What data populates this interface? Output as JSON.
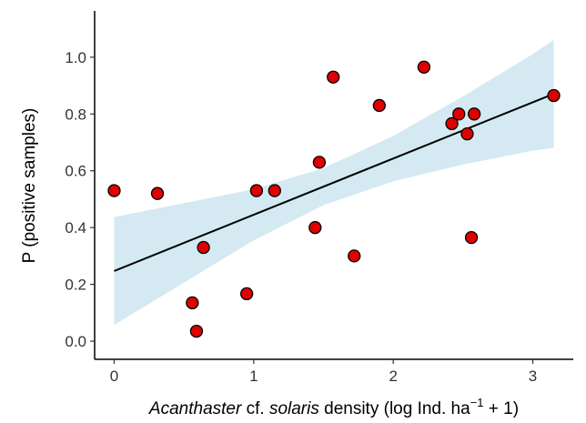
{
  "chart_data": {
    "type": "scatter",
    "x_label_parts": [
      "Acanthaster",
      " cf. ",
      "solaris",
      " density (log Ind. ha",
      "−1",
      " + 1)"
    ],
    "y_label": "P (positive samples)",
    "x": [
      0,
      0.31,
      0.64,
      0.56,
      0.59,
      0.95,
      1.02,
      1.15,
      1.44,
      1.47,
      1.57,
      1.72,
      1.9,
      2.22,
      2.42,
      2.47,
      2.53,
      2.58,
      2.56,
      3.15
    ],
    "values": [
      0.53,
      0.52,
      0.33,
      0.135,
      0.035,
      0.167,
      0.53,
      0.53,
      0.4,
      0.63,
      0.93,
      0.3,
      0.83,
      0.965,
      0.766,
      0.8,
      0.73,
      0.8,
      0.365,
      0.865
    ],
    "color": "#e00000",
    "fit": {
      "x": [
        0,
        3.15
      ],
      "y": [
        0.247,
        0.871
      ],
      "color": "#000000"
    },
    "band": {
      "x": [
        0,
        0.5,
        1,
        1.5,
        2,
        2.5,
        3,
        3.15
      ],
      "upper": [
        0.437,
        0.486,
        0.535,
        0.609,
        0.723,
        0.862,
        1.011,
        1.061
      ],
      "lower": [
        0.057,
        0.206,
        0.355,
        0.479,
        0.563,
        0.622,
        0.671,
        0.681
      ],
      "color": "#d4e9f2"
    },
    "xlim": [
      -0.14,
      3.29
    ],
    "ylim": [
      -0.064,
      1.163
    ],
    "xticks": [
      0,
      1,
      2,
      3
    ],
    "yticks": [
      {
        "value": 0,
        "label": "0.0"
      },
      {
        "value": 0.2,
        "label": "0.2"
      },
      {
        "value": 0.4,
        "label": "0.4"
      },
      {
        "value": 0.6,
        "label": "0.6"
      },
      {
        "value": 0.8,
        "label": "0.8"
      },
      {
        "value": 1,
        "label": "1.0"
      }
    ]
  }
}
